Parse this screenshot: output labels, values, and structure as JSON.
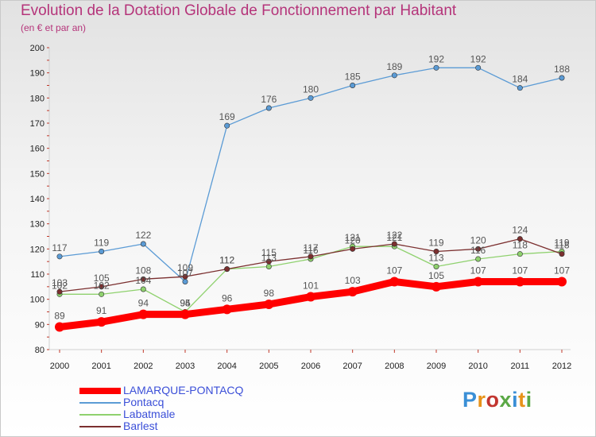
{
  "page": {
    "title": "Evolution de la Dotation Globale de Fonctionnement par Habitant",
    "subtitle": "(en € et par an)",
    "brand": "Proxiti"
  },
  "chart_data": {
    "type": "line",
    "title": "Evolution de la Dotation Globale de Fonctionnement par Habitant",
    "subtitle": "(en € et par an)",
    "x": [
      "2000",
      "2001",
      "2002",
      "2003",
      "2004",
      "2005",
      "2006",
      "2007",
      "2008",
      "2009",
      "2010",
      "2011",
      "2012"
    ],
    "ylim": [
      80,
      200
    ],
    "yticks": [
      80,
      90,
      100,
      110,
      120,
      130,
      140,
      150,
      160,
      170,
      180,
      190,
      200
    ],
    "grid": false,
    "legend_position": "bottom-left",
    "series": [
      {
        "name": "LAMARQUE-PONTACQ",
        "color": "#ff0000",
        "values": [
          89,
          91,
          94,
          94,
          96,
          98,
          101,
          103,
          107,
          105,
          107,
          107,
          107
        ]
      },
      {
        "name": "Pontacq",
        "color": "#5b9bd5",
        "values": [
          117,
          119,
          122,
          107,
          169,
          176,
          180,
          185,
          189,
          192,
          192,
          184,
          188
        ]
      },
      {
        "name": "Labatmale",
        "color": "#8fd16e",
        "values": [
          102,
          102,
          104,
          95,
          112,
          113,
          116,
          121,
          121,
          113,
          116,
          118,
          119
        ]
      },
      {
        "name": "Barlest",
        "color": "#7b2f2f",
        "values": [
          103,
          105,
          108,
          109,
          112,
          115,
          117,
          120,
          122,
          119,
          120,
          124,
          118
        ]
      }
    ]
  }
}
